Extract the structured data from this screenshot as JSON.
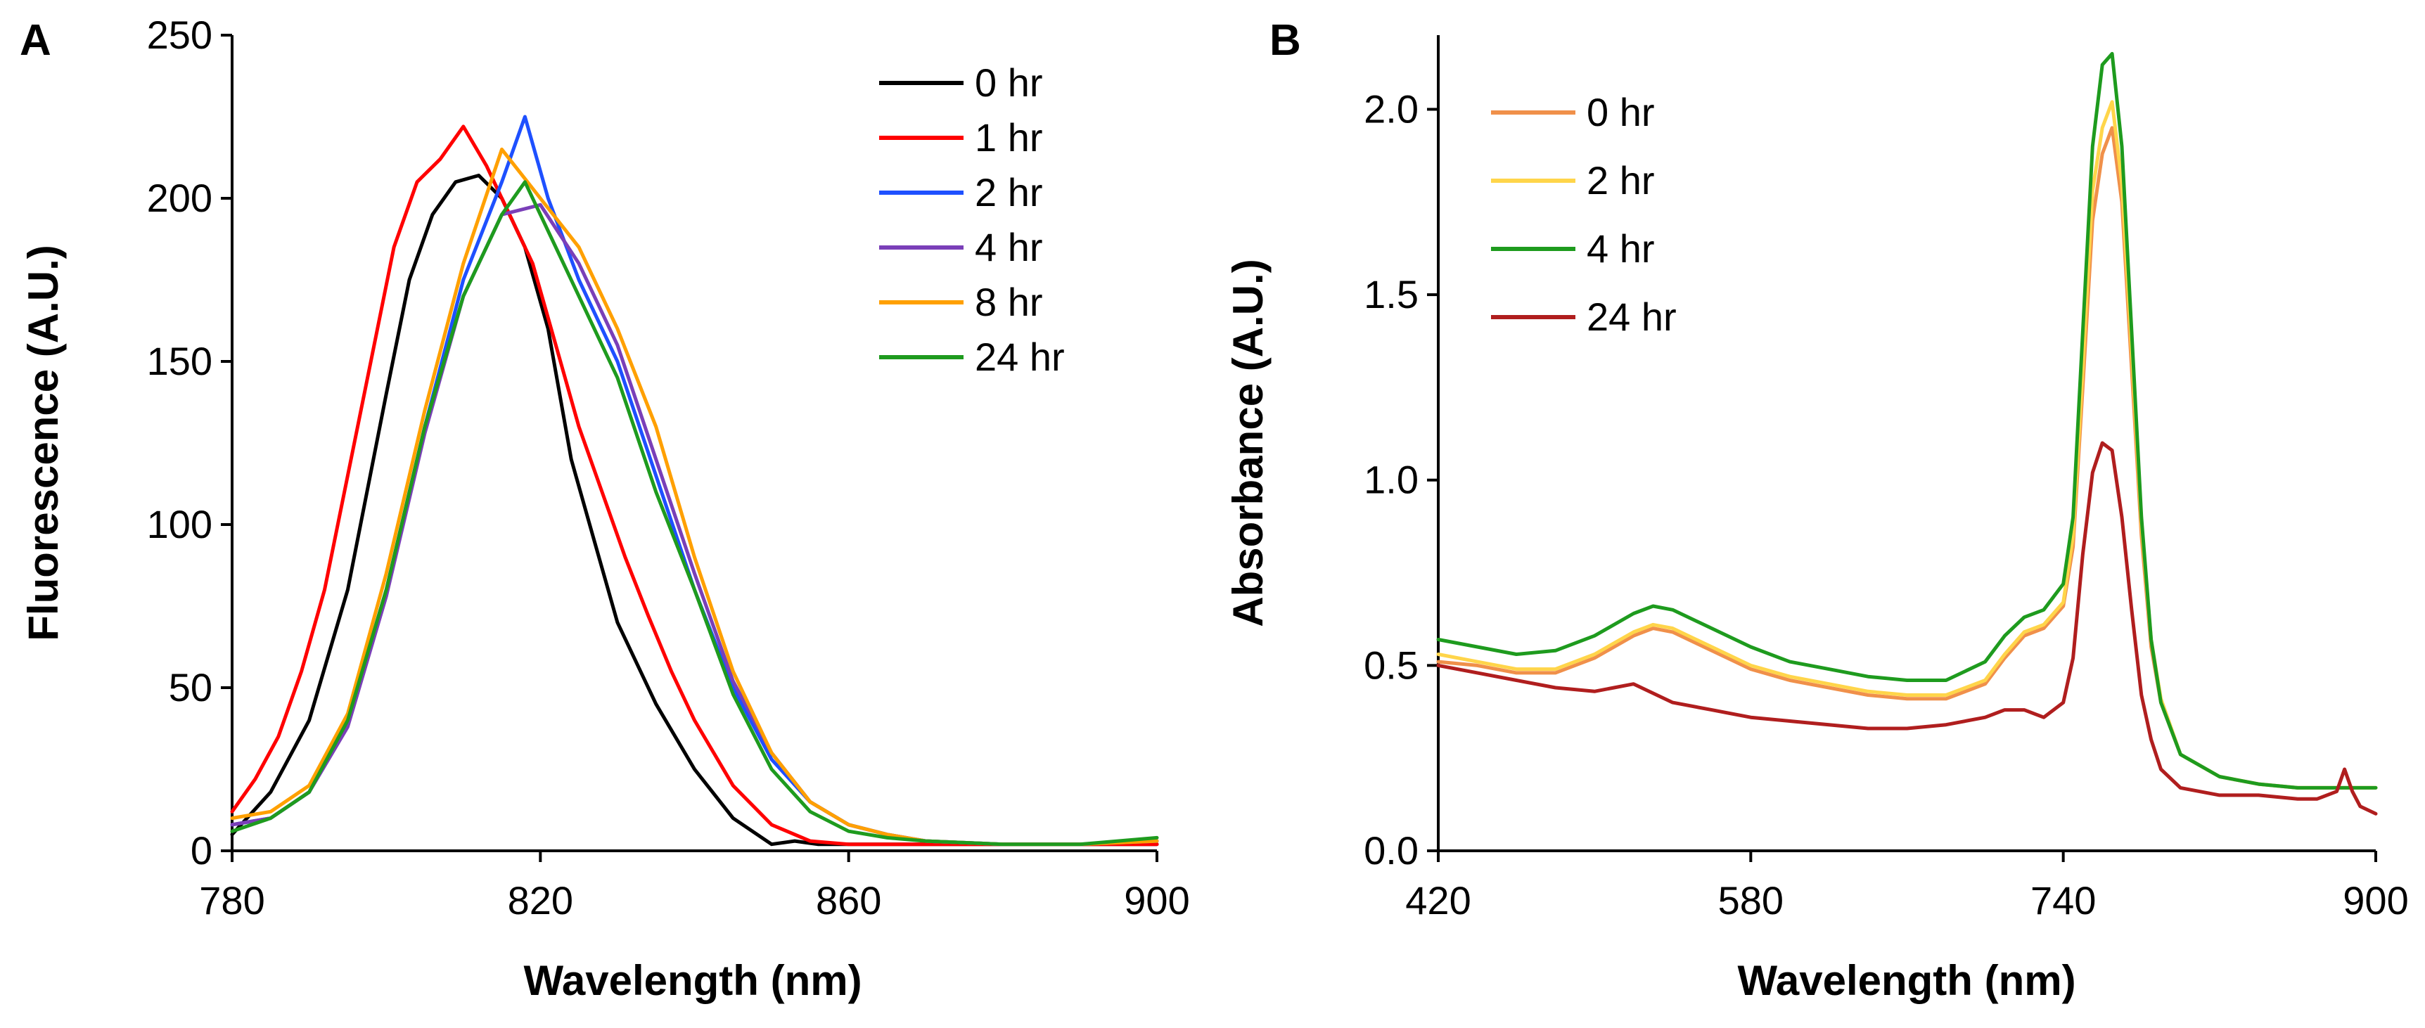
{
  "chart_data": [
    {
      "panel": "A",
      "type": "line",
      "title": "",
      "xlabel": "Wavelength (nm)",
      "ylabel": "Fluorescence (A.U.)",
      "xlim": [
        780,
        900
      ],
      "ylim": [
        0,
        250
      ],
      "xticks": [
        780,
        820,
        860,
        900
      ],
      "yticks": [
        0,
        50,
        100,
        150,
        200,
        250
      ],
      "legend": "top-right",
      "series": [
        {
          "name": "0 hr",
          "color": "#000000",
          "x": [
            780,
            785,
            790,
            795,
            800,
            803,
            806,
            809,
            812,
            815,
            818,
            821,
            824,
            827,
            830,
            835,
            840,
            845,
            850,
            853,
            856,
            860,
            870,
            880,
            890,
            900
          ],
          "y": [
            5,
            18,
            40,
            80,
            140,
            175,
            195,
            205,
            207,
            200,
            185,
            160,
            120,
            95,
            70,
            45,
            25,
            10,
            2,
            3,
            2,
            2,
            2,
            2,
            2,
            2
          ]
        },
        {
          "name": "1 hr",
          "color": "#ff0000",
          "x": [
            780,
            783,
            786,
            789,
            792,
            795,
            798,
            801,
            804,
            807,
            810,
            813,
            816,
            819,
            822,
            825,
            828,
            831,
            834,
            837,
            840,
            845,
            850,
            855,
            860,
            870,
            880,
            890,
            900
          ],
          "y": [
            12,
            22,
            35,
            55,
            80,
            115,
            150,
            185,
            205,
            212,
            222,
            210,
            195,
            180,
            155,
            130,
            110,
            90,
            72,
            55,
            40,
            20,
            8,
            3,
            2,
            2,
            2,
            2,
            2
          ]
        },
        {
          "name": "2 hr",
          "color": "#1e50ff",
          "x": [
            780,
            785,
            790,
            795,
            800,
            805,
            810,
            815,
            818,
            821,
            825,
            830,
            835,
            840,
            845,
            850,
            855,
            860,
            865,
            870,
            880,
            890,
            900
          ],
          "y": [
            8,
            10,
            18,
            40,
            80,
            130,
            175,
            205,
            225,
            200,
            175,
            150,
            115,
            80,
            50,
            28,
            15,
            8,
            5,
            3,
            2,
            2,
            3
          ]
        },
        {
          "name": "4 hr",
          "color": "#7a3fb8",
          "x": [
            780,
            785,
            790,
            795,
            800,
            805,
            810,
            815,
            820,
            825,
            830,
            835,
            840,
            845,
            850,
            855,
            860,
            865,
            870,
            880,
            890,
            900
          ],
          "y": [
            8,
            10,
            18,
            38,
            78,
            128,
            170,
            195,
            198,
            180,
            155,
            120,
            85,
            52,
            30,
            15,
            8,
            5,
            3,
            2,
            2,
            3
          ]
        },
        {
          "name": "8 hr",
          "color": "#ffa000",
          "x": [
            780,
            785,
            790,
            795,
            800,
            805,
            810,
            815,
            820,
            825,
            830,
            835,
            840,
            845,
            850,
            855,
            860,
            865,
            870,
            880,
            890,
            900
          ],
          "y": [
            10,
            12,
            20,
            42,
            85,
            135,
            180,
            215,
            200,
            185,
            160,
            130,
            90,
            55,
            30,
            15,
            8,
            5,
            3,
            2,
            2,
            3
          ]
        },
        {
          "name": "24 hr",
          "color": "#1e9b1e",
          "x": [
            780,
            785,
            790,
            795,
            800,
            805,
            810,
            815,
            818,
            821,
            825,
            830,
            835,
            840,
            845,
            850,
            855,
            860,
            865,
            870,
            880,
            890,
            900
          ],
          "y": [
            6,
            10,
            18,
            40,
            80,
            130,
            170,
            195,
            205,
            190,
            170,
            145,
            110,
            80,
            48,
            25,
            12,
            6,
            4,
            3,
            2,
            2,
            4
          ]
        }
      ]
    },
    {
      "panel": "B",
      "type": "line",
      "title": "",
      "xlabel": "Wavelength (nm)",
      "ylabel": "Absorbance (A.U.)",
      "xlim": [
        420,
        900
      ],
      "ylim": [
        0.0,
        2.2
      ],
      "xticks": [
        420,
        580,
        740,
        900
      ],
      "yticks": [
        0.0,
        0.5,
        1.0,
        1.5,
        2.0
      ],
      "ytick_labels": [
        "0.0",
        "0.5",
        "1.0",
        "1.5",
        "2.0"
      ],
      "legend": "top-left",
      "series": [
        {
          "name": "0 hr",
          "color": "#f0904a",
          "x": [
            420,
            440,
            460,
            480,
            500,
            520,
            530,
            540,
            560,
            580,
            600,
            620,
            640,
            660,
            680,
            700,
            710,
            720,
            730,
            740,
            745,
            750,
            755,
            760,
            765,
            770,
            775,
            780,
            785,
            790,
            800,
            820,
            840,
            860,
            880,
            890,
            900
          ],
          "y": [
            0.51,
            0.5,
            0.48,
            0.48,
            0.52,
            0.58,
            0.6,
            0.59,
            0.54,
            0.49,
            0.46,
            0.44,
            0.42,
            0.41,
            0.41,
            0.45,
            0.52,
            0.58,
            0.6,
            0.66,
            0.82,
            1.25,
            1.7,
            1.88,
            1.95,
            1.75,
            1.3,
            0.85,
            0.55,
            0.4,
            0.26,
            0.2,
            0.18,
            0.17,
            0.17,
            0.17,
            0.17
          ]
        },
        {
          "name": "2 hr",
          "color": "#ffd54a",
          "x": [
            420,
            440,
            460,
            480,
            500,
            520,
            530,
            540,
            560,
            580,
            600,
            620,
            640,
            660,
            680,
            700,
            710,
            720,
            730,
            740,
            745,
            750,
            755,
            760,
            765,
            770,
            775,
            780,
            785,
            790,
            800,
            820,
            840,
            860,
            880,
            890,
            900
          ],
          "y": [
            0.53,
            0.51,
            0.49,
            0.49,
            0.53,
            0.59,
            0.61,
            0.6,
            0.55,
            0.5,
            0.47,
            0.45,
            0.43,
            0.42,
            0.42,
            0.46,
            0.53,
            0.59,
            0.61,
            0.67,
            0.85,
            1.3,
            1.78,
            1.95,
            2.02,
            1.8,
            1.35,
            0.88,
            0.57,
            0.41,
            0.26,
            0.2,
            0.18,
            0.17,
            0.17,
            0.17,
            0.17
          ]
        },
        {
          "name": "4 hr",
          "color": "#1e9b1e",
          "x": [
            420,
            440,
            460,
            480,
            500,
            520,
            530,
            540,
            560,
            580,
            600,
            620,
            640,
            660,
            680,
            700,
            710,
            720,
            730,
            740,
            745,
            750,
            755,
            760,
            765,
            770,
            775,
            780,
            785,
            790,
            800,
            820,
            840,
            860,
            880,
            890,
            900
          ],
          "y": [
            0.57,
            0.55,
            0.53,
            0.54,
            0.58,
            0.64,
            0.66,
            0.65,
            0.6,
            0.55,
            0.51,
            0.49,
            0.47,
            0.46,
            0.46,
            0.51,
            0.58,
            0.63,
            0.65,
            0.72,
            0.9,
            1.4,
            1.9,
            2.12,
            2.15,
            1.9,
            1.4,
            0.9,
            0.57,
            0.4,
            0.26,
            0.2,
            0.18,
            0.17,
            0.17,
            0.17,
            0.17
          ]
        },
        {
          "name": "24 hr",
          "color": "#b01e1e",
          "x": [
            420,
            440,
            460,
            480,
            500,
            510,
            520,
            540,
            560,
            580,
            600,
            620,
            640,
            660,
            680,
            700,
            710,
            720,
            730,
            740,
            745,
            750,
            755,
            760,
            765,
            770,
            775,
            780,
            785,
            790,
            800,
            820,
            840,
            860,
            870,
            880,
            884,
            888,
            892,
            896,
            900
          ],
          "y": [
            0.5,
            0.48,
            0.46,
            0.44,
            0.43,
            0.44,
            0.45,
            0.4,
            0.38,
            0.36,
            0.35,
            0.34,
            0.33,
            0.33,
            0.34,
            0.36,
            0.38,
            0.38,
            0.36,
            0.4,
            0.52,
            0.8,
            1.02,
            1.1,
            1.08,
            0.9,
            0.65,
            0.42,
            0.3,
            0.22,
            0.17,
            0.15,
            0.15,
            0.14,
            0.14,
            0.16,
            0.22,
            0.16,
            0.12,
            0.11,
            0.1
          ]
        }
      ]
    }
  ]
}
